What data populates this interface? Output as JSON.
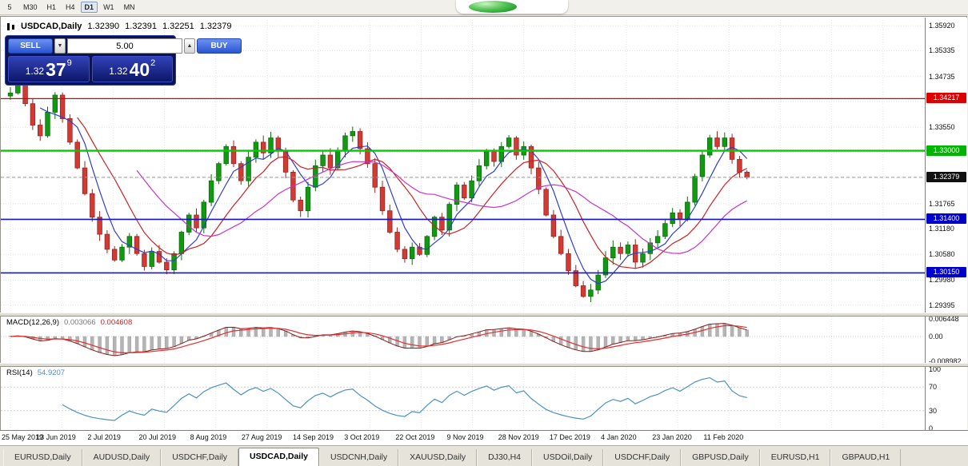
{
  "toolbar": {
    "periods": [
      {
        "label": "5"
      },
      {
        "label": "M30"
      },
      {
        "label": "H1"
      },
      {
        "label": "H4"
      },
      {
        "label": "D1",
        "active": true
      },
      {
        "label": "W1"
      },
      {
        "label": "MN"
      }
    ]
  },
  "chart_info": {
    "symbol": "USDCAD,Daily",
    "open": "1.32390",
    "high": "1.32391",
    "low": "1.32251",
    "close": "1.32379"
  },
  "one_click": {
    "sell_label": "SELL",
    "buy_label": "BUY",
    "volume": "5.00",
    "sell_big": "1.32",
    "sell_pips": "37",
    "sell_sup": "9",
    "buy_big": "1.32",
    "buy_pips": "40",
    "buy_sup": "2"
  },
  "price_axis": {
    "plain": [
      {
        "t": "1.35920",
        "p": 1.3592
      },
      {
        "t": "1.35335",
        "p": 1.35335
      },
      {
        "t": "1.34735",
        "p": 1.34735
      },
      {
        "t": "1.33550",
        "p": 1.3355
      },
      {
        "t": "1.31765",
        "p": 1.31765
      },
      {
        "t": "1.31180",
        "p": 1.3118
      },
      {
        "t": "1.30580",
        "p": 1.3058
      },
      {
        "t": "1.29980",
        "p": 1.2998
      },
      {
        "t": "1.29395",
        "p": 1.29395
      }
    ],
    "badges": [
      {
        "t": "1.34217",
        "p": 1.34217,
        "c": "#dd0000"
      },
      {
        "t": "1.33000",
        "p": 1.33,
        "c": "#00b400"
      },
      {
        "t": "1.32379",
        "p": 1.32379,
        "c": "#111111"
      },
      {
        "t": "1.31400",
        "p": 1.314,
        "c": "#0000cc"
      },
      {
        "t": "1.30150",
        "p": 1.3015,
        "c": "#0000cc"
      }
    ],
    "grid": [
      1.3592,
      1.35335,
      1.34735,
      1.3415,
      1.3355,
      1.32965,
      1.3237,
      1.31765,
      1.3118,
      1.3058,
      1.2998,
      1.29395
    ]
  },
  "levels": [
    {
      "price": 1.34217,
      "color": "#dd0000",
      "width": 1.3,
      "style": "solid"
    },
    {
      "price": 1.33,
      "color": "#00cc00",
      "width": 2.4,
      "style": "solid"
    },
    {
      "price": 1.314,
      "color": "#1515cc",
      "width": 1.6,
      "style": "solid"
    },
    {
      "price": 1.3015,
      "color": "#1515cc",
      "width": 1.6,
      "style": "solid"
    },
    {
      "price": 1.32379,
      "color": "#9a9a9a",
      "width": 1,
      "style": "dash"
    }
  ],
  "indicators": {
    "macd": {
      "name": "MACD(12,26,9)",
      "v1": "0.003066",
      "v2": "0.004608",
      "axis": [
        "0.006448",
        "0.00",
        "-0.008982"
      ]
    },
    "rsi": {
      "name": "RSI(14)",
      "value": "54.9207",
      "axis": [
        "100",
        "70",
        "30",
        "0"
      ]
    }
  },
  "chart_data": {
    "type": "candlestick",
    "symbol": "USDCAD",
    "timeframe": "Daily",
    "ylim": [
      1.2921,
      1.3596
    ],
    "x_ticks": [
      "25 May 2019",
      "13 Jun 2019",
      "2 Jul 2019",
      "20 Jul 2019",
      "8 Aug 2019",
      "27 Aug 2019",
      "14 Sep 2019",
      "3 Oct 2019",
      "22 Oct 2019",
      "9 Nov 2019",
      "28 Nov 2019",
      "17 Dec 2019",
      "4 Jan 2020",
      "23 Jan 2020",
      "11 Feb 2020"
    ],
    "closes": [
      1.3435,
      1.346,
      1.341,
      1.336,
      1.3335,
      1.339,
      1.343,
      1.3375,
      1.332,
      1.326,
      1.32,
      1.3145,
      1.3105,
      1.307,
      1.3045,
      1.3075,
      1.31,
      1.306,
      1.303,
      1.3065,
      1.304,
      1.3022,
      1.306,
      1.311,
      1.315,
      1.312,
      1.318,
      1.323,
      1.327,
      1.331,
      1.327,
      1.323,
      1.3285,
      1.332,
      1.3295,
      1.333,
      1.33,
      1.325,
      1.3185,
      1.316,
      1.3215,
      1.3265,
      1.329,
      1.326,
      1.33,
      1.3335,
      1.3345,
      1.3305,
      1.327,
      1.3215,
      1.316,
      1.311,
      1.307,
      1.3048,
      1.3075,
      1.3058,
      1.31,
      1.3145,
      1.3115,
      1.3175,
      1.322,
      1.319,
      1.323,
      1.3265,
      1.33,
      1.3275,
      1.331,
      1.333,
      1.329,
      1.331,
      1.326,
      1.321,
      1.315,
      1.31,
      1.306,
      1.302,
      1.2985,
      1.296,
      1.2975,
      1.301,
      1.305,
      1.3075,
      1.306,
      1.308,
      1.304,
      1.306,
      1.3085,
      1.31,
      1.313,
      1.3155,
      1.314,
      1.318,
      1.324,
      1.329,
      1.333,
      1.331,
      1.333,
      1.328,
      1.325,
      1.3238
    ],
    "moving_averages": [
      {
        "period": 5,
        "color": "#2f3fc8"
      },
      {
        "period": 10,
        "color": "#cc2222"
      },
      {
        "period": 18,
        "color": "#c832c8"
      }
    ],
    "candle_up_color": "#119a11",
    "candle_down_color": "#d03b35",
    "macd_hist_color": "#b4b4b4",
    "macd_line_color": "#8b1a1a",
    "macd_signal_color": "#e03030",
    "rsi_line_color": "#4a90c8"
  },
  "tabs": [
    {
      "label": "EURUSD,Daily"
    },
    {
      "label": "AUDUSD,Daily"
    },
    {
      "label": "USDCHF,Daily"
    },
    {
      "label": "USDCAD,Daily",
      "active": true
    },
    {
      "label": "USDCNH,Daily"
    },
    {
      "label": "XAUUSD,Daily"
    },
    {
      "label": "DJ30,H4"
    },
    {
      "label": "USDOil,Daily"
    },
    {
      "label": "USDCHF,Daily"
    },
    {
      "label": "GBPUSD,Daily"
    },
    {
      "label": "EURUSD,H1"
    },
    {
      "label": "GBPAUD,H1"
    }
  ]
}
